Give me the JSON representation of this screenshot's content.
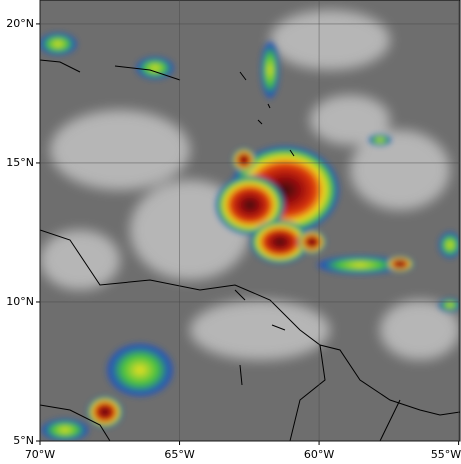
{
  "map": {
    "xlim": [
      -70,
      -54.95
    ],
    "ylim": [
      5,
      20.86
    ],
    "xticks": [
      {
        "value": -70,
        "label": "70°W"
      },
      {
        "value": -65,
        "label": "65°W"
      },
      {
        "value": -60,
        "label": "60°W"
      },
      {
        "value": -55,
        "label": "55°W"
      }
    ],
    "yticks": [
      {
        "value": 5,
        "label": "5°N"
      },
      {
        "value": 10,
        "label": "10°N"
      },
      {
        "value": 15,
        "label": "15°N"
      },
      {
        "value": 20,
        "label": "20°N"
      }
    ],
    "grid": true
  }
}
